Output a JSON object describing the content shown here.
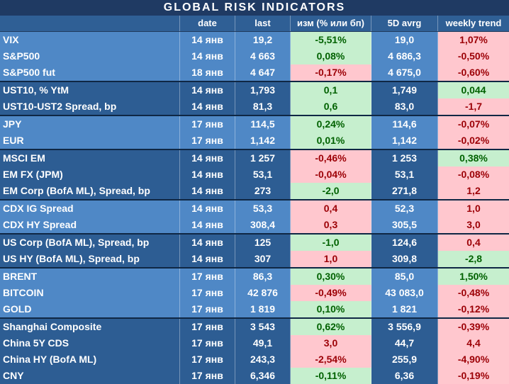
{
  "title": "GLOBAL   RISK   INDICATORS",
  "headers": [
    "",
    "date",
    "last",
    "изм (% или бп)",
    "5D avrg",
    "weekly trend"
  ],
  "rows": [
    {
      "name": "VIX",
      "date": "14 янв",
      "last": "19,2",
      "chg": "-5,51%",
      "avg": "19,0",
      "trend": "1,07%",
      "chg_s": "pos",
      "trend_s": "neg",
      "shade": "light",
      "sep": false
    },
    {
      "name": "S&P500",
      "date": "14 янв",
      "last": "4 663",
      "chg": "0,08%",
      "avg": "4 686,3",
      "trend": "-0,50%",
      "chg_s": "pos",
      "trend_s": "neg",
      "shade": "light",
      "sep": false
    },
    {
      "name": "S&P500 fut",
      "date": "18 янв",
      "last": "4 647",
      "chg": "-0,17%",
      "avg": "4 675,0",
      "trend": "-0,60%",
      "chg_s": "neg",
      "trend_s": "neg",
      "shade": "light",
      "sep": false
    },
    {
      "name": "UST10, % YtM",
      "date": "14 янв",
      "last": "1,793",
      "chg": "0,1",
      "avg": "1,749",
      "trend": "0,044",
      "chg_s": "pos",
      "trend_s": "pos",
      "shade": "dark",
      "sep": true
    },
    {
      "name": "UST10-UST2 Spread, bp",
      "date": "14 янв",
      "last": "81,3",
      "chg": "0,6",
      "avg": "83,0",
      "trend": "-1,7",
      "chg_s": "pos",
      "trend_s": "neg",
      "shade": "dark",
      "sep": false
    },
    {
      "name": "JPY",
      "date": "17 янв",
      "last": "114,5",
      "chg": "0,24%",
      "avg": "114,6",
      "trend": "-0,07%",
      "chg_s": "pos",
      "trend_s": "neg",
      "shade": "light",
      "sep": true
    },
    {
      "name": "EUR",
      "date": "17 янв",
      "last": "1,142",
      "chg": "0,01%",
      "avg": "1,142",
      "trend": "-0,02%",
      "chg_s": "pos",
      "trend_s": "neg",
      "shade": "light",
      "sep": false
    },
    {
      "name": "MSCI EM",
      "date": "14 янв",
      "last": "1 257",
      "chg": "-0,46%",
      "avg": "1 253",
      "trend": "0,38%",
      "chg_s": "neg",
      "trend_s": "pos",
      "shade": "dark",
      "sep": true
    },
    {
      "name": "EM FX (JPM)",
      "date": "14 янв",
      "last": "53,1",
      "chg": "-0,04%",
      "avg": "53,1",
      "trend": "-0,08%",
      "chg_s": "neg",
      "trend_s": "neg",
      "shade": "dark",
      "sep": false
    },
    {
      "name": "EM Corp (BofA ML), Spread, bp",
      "date": "14 янв",
      "last": "273",
      "chg": "-2,0",
      "avg": "271,8",
      "trend": "1,2",
      "chg_s": "pos",
      "trend_s": "neg",
      "shade": "dark",
      "sep": false
    },
    {
      "name": "CDX IG Spread",
      "date": "14 янв",
      "last": "53,3",
      "chg": "0,4",
      "avg": "52,3",
      "trend": "1,0",
      "chg_s": "neg",
      "trend_s": "neg",
      "shade": "light",
      "sep": true
    },
    {
      "name": "CDX HY Spread",
      "date": "14 янв",
      "last": "308,4",
      "chg": "0,3",
      "avg": "305,5",
      "trend": "3,0",
      "chg_s": "neg",
      "trend_s": "neg",
      "shade": "light",
      "sep": false
    },
    {
      "name": "US Corp (BofA ML), Spread, bp",
      "date": "14 янв",
      "last": "125",
      "chg": "-1,0",
      "avg": "124,6",
      "trend": "0,4",
      "chg_s": "pos",
      "trend_s": "neg",
      "shade": "dark",
      "sep": true
    },
    {
      "name": "US HY (BofA ML), Spread, bp",
      "date": "14 янв",
      "last": "307",
      "chg": "1,0",
      "avg": "309,8",
      "trend": "-2,8",
      "chg_s": "neg",
      "trend_s": "pos",
      "shade": "dark",
      "sep": false
    },
    {
      "name": "BRENT",
      "date": "17 янв",
      "last": "86,3",
      "chg": "0,30%",
      "avg": "85,0",
      "trend": "1,50%",
      "chg_s": "pos",
      "trend_s": "pos",
      "shade": "light",
      "sep": true
    },
    {
      "name": "BITCOIN",
      "date": "17 янв",
      "last": "42 876",
      "chg": "-0,49%",
      "avg": "43 083,0",
      "trend": "-0,48%",
      "chg_s": "neg",
      "trend_s": "neg",
      "shade": "light",
      "sep": false
    },
    {
      "name": "GOLD",
      "date": "17 янв",
      "last": "1 819",
      "chg": "0,10%",
      "avg": "1 821",
      "trend": "-0,12%",
      "chg_s": "pos",
      "trend_s": "neg",
      "shade": "light",
      "sep": false
    },
    {
      "name": "Shanghai Composite",
      "date": "17 янв",
      "last": "3 543",
      "chg": "0,62%",
      "avg": "3 556,9",
      "trend": "-0,39%",
      "chg_s": "pos",
      "trend_s": "neg",
      "shade": "dark",
      "sep": true
    },
    {
      "name": "China 5Y CDS",
      "date": "17 янв",
      "last": "49,1",
      "chg": "3,0",
      "avg": "44,7",
      "trend": "4,4",
      "chg_s": "neg",
      "trend_s": "neg",
      "shade": "dark",
      "sep": false
    },
    {
      "name": "China HY (BofA ML)",
      "date": "17 янв",
      "last": "243,3",
      "chg": "-2,54%",
      "avg": "255,9",
      "trend": "-4,90%",
      "chg_s": "neg",
      "trend_s": "neg",
      "shade": "dark",
      "sep": false
    },
    {
      "name": "CNY",
      "date": "17 янв",
      "last": "6,346",
      "chg": "-0,11%",
      "avg": "6,36",
      "trend": "-0,19%",
      "chg_s": "pos",
      "trend_s": "neg",
      "shade": "dark",
      "sep": false
    }
  ]
}
